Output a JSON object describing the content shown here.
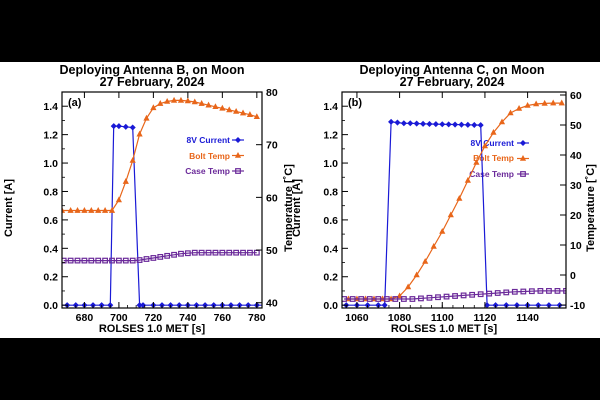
{
  "colors": {
    "current": "#1a1ad6",
    "bolt": "#e8661a",
    "case": "#6b2a9a",
    "axis": "#000000"
  },
  "legend": {
    "current": "8V Current",
    "bolt": "Bolt Temp",
    "case": "Case Temp"
  },
  "chart_data": [
    {
      "type": "line",
      "panel_label": "(a)",
      "title": [
        "Deploying Antenna B, on Moon",
        "27 February, 2024"
      ],
      "xlabel": "ROLSES 1.0 MET [s]",
      "ylabel": "Current [A]",
      "y2label": "Temperature [˚C]",
      "xlim": [
        667,
        783
      ],
      "ylim": [
        -0.02,
        1.5
      ],
      "y2lim": [
        39,
        80
      ],
      "xticks": [
        680,
        700,
        720,
        740,
        760,
        780
      ],
      "yticks": [
        0.0,
        0.2,
        0.4,
        0.6,
        0.8,
        1.0,
        1.2,
        1.4
      ],
      "y2ticks": [
        40,
        50,
        60,
        70,
        80
      ],
      "legend_position": "right-middle",
      "series": [
        {
          "name": "8V Current",
          "axis": "left",
          "marker": "diamond",
          "x": [
            665,
            670,
            675,
            680,
            685,
            690,
            695,
            697,
            700,
            704,
            708,
            712,
            714,
            720,
            725,
            730,
            735,
            740,
            745,
            750,
            755,
            760,
            765,
            770,
            775,
            780,
            785
          ],
          "y": [
            0,
            0,
            0,
            0,
            0,
            0,
            0,
            1.26,
            1.26,
            1.255,
            1.25,
            0,
            0,
            0,
            0,
            0,
            0,
            0,
            0,
            0,
            0,
            0,
            0,
            0,
            0,
            0,
            0
          ]
        },
        {
          "name": "Bolt Temp",
          "axis": "right",
          "marker": "triangle",
          "x": [
            667,
            672,
            676,
            680,
            684,
            688,
            692,
            696,
            700,
            704,
            708,
            712,
            716,
            720,
            724,
            728,
            732,
            736,
            740,
            744,
            748,
            752,
            756,
            760,
            764,
            768,
            772,
            776,
            780
          ],
          "y": [
            57.5,
            57.5,
            57.5,
            57.5,
            57.5,
            57.5,
            57.5,
            57.5,
            59.5,
            63,
            67,
            72,
            75,
            77,
            77.8,
            78.2,
            78.4,
            78.4,
            78.3,
            78.1,
            77.8,
            77.5,
            77.2,
            76.9,
            76.6,
            76.3,
            76,
            75.7,
            75.3
          ]
        },
        {
          "name": "Case Temp",
          "axis": "right",
          "marker": "square",
          "x": [
            668,
            672,
            676,
            680,
            684,
            688,
            692,
            696,
            700,
            704,
            708,
            712,
            716,
            720,
            724,
            728,
            732,
            736,
            740,
            744,
            748,
            752,
            756,
            760,
            764,
            768,
            772,
            776,
            780
          ],
          "y": [
            48,
            48,
            48,
            48,
            48,
            48,
            48,
            48,
            48,
            48,
            48,
            48.1,
            48.3,
            48.5,
            48.7,
            48.9,
            49.1,
            49.3,
            49.4,
            49.5,
            49.5,
            49.5,
            49.5,
            49.5,
            49.5,
            49.5,
            49.5,
            49.5,
            49.5
          ]
        }
      ]
    },
    {
      "type": "line",
      "panel_label": "(b)",
      "title": [
        "Deploying Antenna C, on Moon",
        "27 February, 2024"
      ],
      "xlabel": "ROLSES 1.0 MET [s]",
      "ylabel": "Current [A]",
      "y2label": "Temperature [˚C]",
      "xlim": [
        1053,
        1158
      ],
      "ylim": [
        -0.02,
        1.5
      ],
      "y2lim": [
        -11,
        61
      ],
      "xticks": [
        1060,
        1080,
        1100,
        1120,
        1140
      ],
      "yticks": [
        0.0,
        0.2,
        0.4,
        0.6,
        0.8,
        1.0,
        1.2,
        1.4
      ],
      "y2ticks": [
        -10,
        0,
        10,
        20,
        30,
        40,
        50,
        60
      ],
      "legend_position": "right-middle",
      "series": [
        {
          "name": "8V Current",
          "axis": "left",
          "marker": "diamond",
          "x": [
            1050,
            1055,
            1060,
            1065,
            1070,
            1073,
            1076,
            1079,
            1082,
            1085,
            1088,
            1091,
            1094,
            1097,
            1100,
            1103,
            1106,
            1109,
            1112,
            1115,
            1118,
            1121,
            1125,
            1130,
            1135,
            1140,
            1145,
            1150,
            1155,
            1160
          ],
          "y": [
            0,
            0,
            0,
            0,
            0,
            0,
            1.29,
            1.285,
            1.28,
            1.28,
            1.278,
            1.276,
            1.275,
            1.274,
            1.273,
            1.272,
            1.271,
            1.27,
            1.269,
            1.268,
            1.267,
            0,
            0,
            0,
            0,
            0,
            0,
            0,
            0,
            0
          ]
        },
        {
          "name": "Bolt Temp",
          "axis": "right",
          "marker": "triangle",
          "x": [
            1056,
            1060,
            1064,
            1068,
            1072,
            1076,
            1080,
            1084,
            1088,
            1092,
            1096,
            1100,
            1104,
            1108,
            1112,
            1116,
            1120,
            1124,
            1128,
            1132,
            1136,
            1140,
            1144,
            1148,
            1152,
            1156
          ],
          "y": [
            -8,
            -8,
            -8,
            -8,
            -8,
            -8,
            -7,
            -4,
            0,
            4.5,
            9.5,
            14.5,
            20,
            25.5,
            31.5,
            37.5,
            43,
            47.5,
            51,
            54,
            55.5,
            56.5,
            57,
            57.2,
            57.3,
            57.3
          ]
        },
        {
          "name": "Case Temp",
          "axis": "right",
          "marker": "square",
          "x": [
            1054,
            1058,
            1062,
            1066,
            1070,
            1074,
            1078,
            1082,
            1086,
            1090,
            1094,
            1098,
            1102,
            1106,
            1110,
            1114,
            1118,
            1122,
            1126,
            1130,
            1134,
            1138,
            1142,
            1146,
            1150,
            1154,
            1158
          ],
          "y": [
            -8,
            -8,
            -8,
            -8,
            -8,
            -8,
            -8,
            -8,
            -8,
            -7.8,
            -7.6,
            -7.4,
            -7.2,
            -7,
            -6.8,
            -6.6,
            -6.4,
            -6.2,
            -6,
            -5.8,
            -5.6,
            -5.5,
            -5.4,
            -5.3,
            -5.3,
            -5.3,
            -5.3
          ]
        }
      ]
    }
  ]
}
